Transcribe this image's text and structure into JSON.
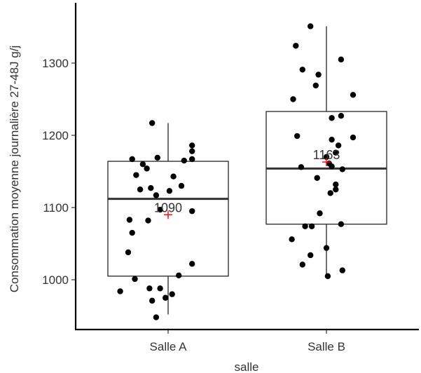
{
  "chart_data": {
    "type": "boxplot",
    "xlabel": "salle",
    "ylabel": "Consommation moyenne journalière 27-48J g/j",
    "categories": [
      "Salle A",
      "Salle B"
    ],
    "ylim": [
      930,
      1360
    ],
    "yticks": [
      1000,
      1100,
      1200,
      1300
    ],
    "grid": false,
    "groups": [
      {
        "name": "Salle A",
        "min": 952,
        "q1": 1005,
        "median": 1112,
        "q3": 1164,
        "max": 1217,
        "mean": 1090,
        "mean_label": "1090",
        "points": [
          {
            "jitter": -0.36,
            "y": 984
          },
          {
            "jitter": -0.25,
            "y": 1001
          },
          {
            "jitter": -0.02,
            "y": 975
          },
          {
            "jitter": -0.06,
            "y": 988
          },
          {
            "jitter": -0.12,
            "y": 971
          },
          {
            "jitter": -0.14,
            "y": 988
          },
          {
            "jitter": 0.08,
            "y": 1006
          },
          {
            "jitter": 0.18,
            "y": 1022
          },
          {
            "jitter": -0.09,
            "y": 948
          },
          {
            "jitter": 0.03,
            "y": 980
          },
          {
            "jitter": -0.3,
            "y": 1038
          },
          {
            "jitter": -0.27,
            "y": 1065
          },
          {
            "jitter": -0.29,
            "y": 1083
          },
          {
            "jitter": -0.15,
            "y": 1082
          },
          {
            "jitter": 0.18,
            "y": 1095
          },
          {
            "jitter": -0.09,
            "y": 1117
          },
          {
            "jitter": -0.13,
            "y": 1127
          },
          {
            "jitter": -0.21,
            "y": 1125
          },
          {
            "jitter": 0.01,
            "y": 1123
          },
          {
            "jitter": -0.24,
            "y": 1145
          },
          {
            "jitter": -0.16,
            "y": 1154
          },
          {
            "jitter": -0.19,
            "y": 1160
          },
          {
            "jitter": -0.27,
            "y": 1167
          },
          {
            "jitter": -0.08,
            "y": 1169
          },
          {
            "jitter": 0.04,
            "y": 1143
          },
          {
            "jitter": 0.12,
            "y": 1165
          },
          {
            "jitter": 0.18,
            "y": 1167
          },
          {
            "jitter": 0.18,
            "y": 1178
          },
          {
            "jitter": 0.18,
            "y": 1186
          },
          {
            "jitter": -0.12,
            "y": 1217
          },
          {
            "jitter": 0.1,
            "y": 1130
          },
          {
            "jitter": -0.06,
            "y": 1097
          }
        ]
      },
      {
        "name": "Salle B",
        "min": 1005,
        "q1": 1077,
        "median": 1154,
        "q3": 1233,
        "max": 1351,
        "mean": 1163,
        "mean_label": "1163",
        "points": [
          {
            "jitter": -0.18,
            "y": 1021
          },
          {
            "jitter": -0.12,
            "y": 1034
          },
          {
            "jitter": 0.01,
            "y": 1005
          },
          {
            "jitter": 0.12,
            "y": 1013
          },
          {
            "jitter": -0.26,
            "y": 1056
          },
          {
            "jitter": 0.0,
            "y": 1044
          },
          {
            "jitter": -0.16,
            "y": 1074
          },
          {
            "jitter": -0.11,
            "y": 1074
          },
          {
            "jitter": -0.05,
            "y": 1092
          },
          {
            "jitter": 0.11,
            "y": 1077
          },
          {
            "jitter": 0.03,
            "y": 1120
          },
          {
            "jitter": 0.07,
            "y": 1125
          },
          {
            "jitter": 0.07,
            "y": 1132
          },
          {
            "jitter": -0.07,
            "y": 1141
          },
          {
            "jitter": -0.19,
            "y": 1156
          },
          {
            "jitter": 0.12,
            "y": 1153
          },
          {
            "jitter": 0.04,
            "y": 1157
          },
          {
            "jitter": 0.02,
            "y": 1161
          },
          {
            "jitter": 0.0,
            "y": 1170
          },
          {
            "jitter": 0.07,
            "y": 1176
          },
          {
            "jitter": 0.09,
            "y": 1186
          },
          {
            "jitter": 0.04,
            "y": 1194
          },
          {
            "jitter": -0.22,
            "y": 1199
          },
          {
            "jitter": 0.2,
            "y": 1197
          },
          {
            "jitter": 0.04,
            "y": 1224
          },
          {
            "jitter": 0.11,
            "y": 1227
          },
          {
            "jitter": -0.25,
            "y": 1250
          },
          {
            "jitter": 0.2,
            "y": 1256
          },
          {
            "jitter": -0.08,
            "y": 1269
          },
          {
            "jitter": -0.06,
            "y": 1284
          },
          {
            "jitter": -0.18,
            "y": 1291
          },
          {
            "jitter": 0.11,
            "y": 1305
          },
          {
            "jitter": -0.23,
            "y": 1324
          },
          {
            "jitter": -0.12,
            "y": 1351
          }
        ]
      }
    ]
  }
}
